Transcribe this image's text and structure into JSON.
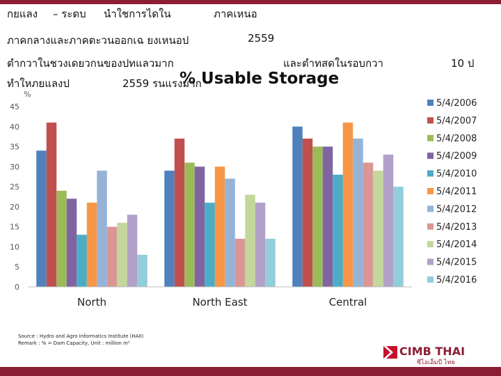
{
  "colors": {
    "brand": "#8B1E33",
    "logo_red": "#C8102E"
  },
  "text_lines": [
    [
      "กยแลง",
      "– ระดบ",
      "นำใชการไดใน",
      "ภาคเหนอ"
    ],
    [
      "ภาคกลางและภาคตะวนออกเฉ ยงเหนอป",
      "2559"
    ],
    [
      "ตำกวาในชวงเดยวกนของปทแลวมาก",
      "และตำทสดในรอบกวา",
      "10 ป"
    ],
    [
      "ทำใหภยแลงป",
      "2559 รนแรงมาก"
    ]
  ],
  "chart_data": {
    "type": "bar",
    "title": "% Usable Storage",
    "ylabel": "%",
    "xlabel": "",
    "ylim": [
      0,
      45
    ],
    "yticks": [
      0,
      5,
      10,
      15,
      20,
      25,
      30,
      35,
      40,
      45
    ],
    "grid": false,
    "legend_position": "right",
    "categories": [
      "North",
      "North East",
      "Central"
    ],
    "series": [
      {
        "name": "5/4/2006",
        "color": "#4F81BD",
        "values": [
          34,
          29,
          40
        ]
      },
      {
        "name": "5/4/2007",
        "color": "#C0504D",
        "values": [
          41,
          37,
          37
        ]
      },
      {
        "name": "5/4/2008",
        "color": "#9BBB59",
        "values": [
          24,
          31,
          35
        ]
      },
      {
        "name": "5/4/2009",
        "color": "#8064A2",
        "values": [
          22,
          30,
          35
        ]
      },
      {
        "name": "5/4/2010",
        "color": "#4BACC6",
        "values": [
          13,
          21,
          28
        ]
      },
      {
        "name": "5/4/2011",
        "color": "#F79646",
        "values": [
          21,
          30,
          41
        ]
      },
      {
        "name": "5/4/2012",
        "color": "#95B3D7",
        "values": [
          29,
          27,
          37
        ]
      },
      {
        "name": "5/4/2013",
        "color": "#DA9694",
        "values": [
          15,
          12,
          31
        ]
      },
      {
        "name": "5/4/2014",
        "color": "#C4D79B",
        "values": [
          16,
          23,
          29
        ]
      },
      {
        "name": "5/4/2015",
        "color": "#B1A0C7",
        "values": [
          18,
          21,
          33
        ]
      },
      {
        "name": "5/4/2016",
        "color": "#92CDDC",
        "values": [
          8,
          12,
          25
        ]
      }
    ]
  },
  "source": {
    "line1": "Source : Hydro and Agro Informatics Institute (HAII)",
    "line2": "Remark : % = Dam Capacity, Unit : million m³"
  },
  "logo": {
    "name": "CIMB THAI",
    "tagline": "ซีไอเอ็มบี ไทย"
  }
}
